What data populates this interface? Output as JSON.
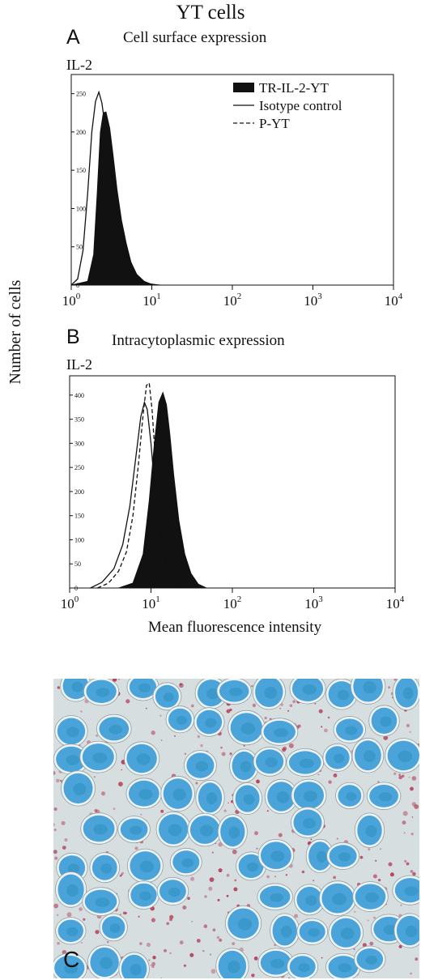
{
  "figure": {
    "title": "YT cells",
    "y_axis_label": "Number of cells",
    "x_axis_label": "Mean fluorescence intensity",
    "panel_c_letter": "C"
  },
  "legend": {
    "filled": "TR-IL-2-YT",
    "solid": "Isotype control",
    "dashed": "P-YT"
  },
  "colors": {
    "histogram_fill": "#111111",
    "micrograph_background": "#d7dedf",
    "nucleus": "#4aa3d9",
    "nucleus_core": "#2e8fbf",
    "stain": "#b02a4a"
  },
  "chart_data": [
    {
      "type": "area",
      "panel": "A",
      "title": "Cell surface expression",
      "marker_label": "IL-2",
      "x_scale": "log",
      "xlim": [
        1,
        10000
      ],
      "ylim": [
        0,
        275
      ],
      "x_ticks": [
        1,
        10,
        100,
        1000,
        10000
      ],
      "x_tick_labels": [
        {
          "base": "10",
          "exp": "0"
        },
        {
          "base": "10",
          "exp": "1"
        },
        {
          "base": "10",
          "exp": "2"
        },
        {
          "base": "10",
          "exp": "3"
        },
        {
          "base": "10",
          "exp": "4"
        }
      ],
      "y_ticks": [
        0,
        50,
        100,
        150,
        200,
        250
      ],
      "y_tick_labels": [
        "0",
        "50",
        "100",
        "150",
        "200",
        "250"
      ],
      "series": [
        {
          "name": "TR-IL-2-YT",
          "style": "filled",
          "x": [
            1.0,
            1.6,
            1.9,
            2.1,
            2.3,
            2.5,
            2.7,
            3.0,
            3.3,
            3.7,
            4.2,
            4.8,
            5.5,
            6.5,
            8.0,
            10.0,
            13.0
          ],
          "y": [
            0,
            5,
            40,
            120,
            200,
            225,
            226,
            205,
            170,
            125,
            85,
            55,
            30,
            14,
            5,
            1,
            0
          ]
        },
        {
          "name": "Isotype control",
          "style": "solid",
          "x": [
            1.0,
            1.2,
            1.4,
            1.6,
            1.8,
            2.0,
            2.2,
            2.4,
            2.7,
            3.0,
            3.5,
            4.0,
            4.8,
            5.8,
            7.0,
            9.0,
            12.0
          ],
          "y": [
            0,
            8,
            45,
            120,
            200,
            240,
            252,
            238,
            200,
            160,
            110,
            75,
            45,
            22,
            8,
            2,
            0
          ]
        }
      ]
    },
    {
      "type": "area",
      "panel": "B",
      "title": "Intracytoplasmic expression",
      "marker_label": "IL-2",
      "x_scale": "log",
      "xlim": [
        1,
        10000
      ],
      "ylim": [
        0,
        440
      ],
      "x_ticks": [
        1,
        10,
        100,
        1000,
        10000
      ],
      "x_tick_labels": [
        {
          "base": "10",
          "exp": "0"
        },
        {
          "base": "10",
          "exp": "1"
        },
        {
          "base": "10",
          "exp": "2"
        },
        {
          "base": "10",
          "exp": "3"
        },
        {
          "base": "10",
          "exp": "4"
        }
      ],
      "y_ticks": [
        0,
        50,
        100,
        150,
        200,
        250,
        300,
        350,
        400
      ],
      "y_tick_labels": [
        "0",
        "50",
        "100",
        "150",
        "200",
        "250",
        "300",
        "350",
        "400"
      ],
      "series": [
        {
          "name": "TR-IL-2-YT",
          "style": "filled",
          "x": [
            4.0,
            6.0,
            8.0,
            9.5,
            11.0,
            12.5,
            14.0,
            15.5,
            17.0,
            19.0,
            22.0,
            26.0,
            31.0,
            38.0,
            48.0
          ],
          "y": [
            0,
            10,
            70,
            180,
            300,
            385,
            405,
            380,
            320,
            235,
            140,
            70,
            30,
            8,
            0
          ]
        },
        {
          "name": "Isotype control",
          "style": "solid",
          "x": [
            1.8,
            2.5,
            3.5,
            4.5,
            5.5,
            6.5,
            7.5,
            8.3,
            9.0,
            10.0,
            11.0,
            12.5,
            14.5,
            17.0,
            21.0
          ],
          "y": [
            0,
            12,
            40,
            90,
            170,
            270,
            355,
            385,
            370,
            300,
            215,
            130,
            60,
            20,
            0
          ]
        },
        {
          "name": "P-YT",
          "style": "dashed",
          "x": [
            2.2,
            3.0,
            4.0,
            5.0,
            6.0,
            7.0,
            8.0,
            8.8,
            9.5,
            10.3,
            11.2,
            12.5,
            14.5,
            17.0,
            21.0
          ],
          "y": [
            0,
            10,
            35,
            75,
            150,
            255,
            360,
            420,
            425,
            370,
            280,
            170,
            75,
            25,
            0
          ]
        }
      ]
    }
  ]
}
